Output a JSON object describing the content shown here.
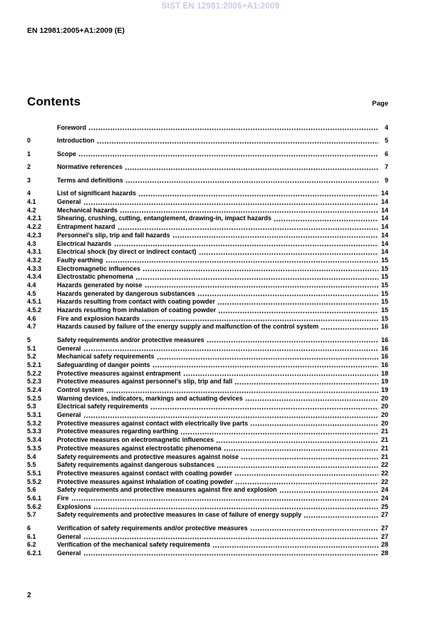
{
  "header": {
    "watermark": "SIST EN 12981:2005+A1:2009",
    "doc_ref": "EN 12981:2005+A1:2009 (E)"
  },
  "contents": {
    "title": "Contents",
    "page_label": "Page",
    "entries": [
      {
        "num": "",
        "title": "Foreword",
        "page": "4",
        "section_start": true
      },
      {
        "num": "0",
        "title": "Introduction",
        "page": "5",
        "section_start": true
      },
      {
        "num": "1",
        "title": "Scope",
        "page": "6",
        "section_start": true
      },
      {
        "num": "2",
        "title": "Normative references",
        "page": "7",
        "section_start": true
      },
      {
        "num": "3",
        "title": "Terms and definitions",
        "page": "9",
        "section_start": true
      },
      {
        "num": "4",
        "title": "List of significant hazards",
        "page": "14",
        "section_start": true
      },
      {
        "num": "4.1",
        "title": "General",
        "page": "14",
        "section_start": false
      },
      {
        "num": "4.2",
        "title": "Mechanical hazards",
        "page": "14",
        "section_start": false
      },
      {
        "num": "4.2.1",
        "title": "Shearing, crushing, cutting, entanglement, drawing-in, impact hazards",
        "page": "14",
        "section_start": false
      },
      {
        "num": "4.2.2",
        "title": "Entrapment hazard",
        "page": "14",
        "section_start": false
      },
      {
        "num": "4.2.3",
        "title": "Personnel's slip, trip and fall hazards",
        "page": "14",
        "section_start": false
      },
      {
        "num": "4.3",
        "title": "Electrical hazards",
        "page": "14",
        "section_start": false
      },
      {
        "num": "4.3.1",
        "title": "Electrical shock (by direct or indirect contact)",
        "page": "14",
        "section_start": false
      },
      {
        "num": "4.3.2",
        "title": "Faulty earthing",
        "page": "15",
        "section_start": false
      },
      {
        "num": "4.3.3",
        "title": "Electromagnetic influences",
        "page": "15",
        "section_start": false
      },
      {
        "num": "4.3.4",
        "title": "Electrostatic phenomena",
        "page": "15",
        "section_start": false
      },
      {
        "num": "4.4",
        "title": "Hazards generated by noise",
        "page": "15",
        "section_start": false
      },
      {
        "num": "4.5",
        "title": "Hazards generated by dangerous substances",
        "page": "15",
        "section_start": false
      },
      {
        "num": "4.5.1",
        "title": "Hazards resulting from contact with coating powder",
        "page": "15",
        "section_start": false
      },
      {
        "num": "4.5.2",
        "title": "Hazards resulting from inhalation of coating powder",
        "page": "15",
        "section_start": false
      },
      {
        "num": "4.6",
        "title": "Fire and explosion hazards",
        "page": "15",
        "section_start": false
      },
      {
        "num": "4.7",
        "title": "Hazards caused by failure of the energy supply and malfunction of the control system",
        "page": "16",
        "section_start": false
      },
      {
        "num": "5",
        "title": "Safety requirements and/or protective measures",
        "page": "16",
        "section_start": true
      },
      {
        "num": "5.1",
        "title": "General",
        "page": "16",
        "section_start": false
      },
      {
        "num": "5.2",
        "title": "Mechanical safety requirements",
        "page": "16",
        "section_start": false
      },
      {
        "num": "5.2.1",
        "title": "Safeguarding of danger points",
        "page": "16",
        "section_start": false
      },
      {
        "num": "5.2.2",
        "title": "Protective measures against entrapment",
        "page": "18",
        "section_start": false
      },
      {
        "num": "5.2.3",
        "title": "Protective measures against personnel's slip, trip and fall",
        "page": "19",
        "section_start": false
      },
      {
        "num": "5.2.4",
        "title": "Control system",
        "page": "19",
        "section_start": false
      },
      {
        "num": "5.2.5",
        "title": "Warning devices, indicators, markings and actuating devices",
        "page": "20",
        "section_start": false
      },
      {
        "num": "5.3",
        "title": "Electrical safety requirements",
        "page": "20",
        "section_start": false
      },
      {
        "num": "5.3.1",
        "title": "General",
        "page": "20",
        "section_start": false
      },
      {
        "num": "5.3.2",
        "title": "Protective measures against contact with electrically live parts",
        "page": "20",
        "section_start": false
      },
      {
        "num": "5.3.3",
        "title": "Protective measures regarding earthing",
        "page": "21",
        "section_start": false
      },
      {
        "num": "5.3.4",
        "title": "Protective measures on electromagnetic influences",
        "page": "21",
        "section_start": false
      },
      {
        "num": "5.3.5",
        "title": "Protective measures against electrostatic phenomena",
        "page": "21",
        "section_start": false
      },
      {
        "num": "5.4",
        "title": "Safety requirements and protective measures against noise",
        "page": "21",
        "section_start": false
      },
      {
        "num": "5.5",
        "title": "Safety requirements against dangerous substances",
        "page": "22",
        "section_start": false
      },
      {
        "num": "5.5.1",
        "title": "Protective measures against contact with coating powder",
        "page": "22",
        "section_start": false
      },
      {
        "num": "5.5.2",
        "title": "Protective measures against inhalation of coating powder",
        "page": "22",
        "section_start": false
      },
      {
        "num": "5.6",
        "title": "Safety requirements and protective measures against fire and explosion",
        "page": "24",
        "section_start": false
      },
      {
        "num": "5.6.1",
        "title": "Fire",
        "page": "24",
        "section_start": false
      },
      {
        "num": "5.6.2",
        "title": "Explosions",
        "page": "25",
        "section_start": false
      },
      {
        "num": "5.7",
        "title": "Safety requirements and protective measures in case of failure of energy supply",
        "page": "27",
        "section_start": false
      },
      {
        "num": "6",
        "title": "Verification of safety requirements and/or protective measures",
        "page": "27",
        "section_start": true
      },
      {
        "num": "6.1",
        "title": "General",
        "page": "27",
        "section_start": false
      },
      {
        "num": "6.2",
        "title": "Verification of the mechanical safety requirements",
        "page": "28",
        "section_start": false
      },
      {
        "num": "6.2.1",
        "title": "General",
        "page": "28",
        "section_start": false
      }
    ]
  },
  "footer": {
    "page_number": "2"
  },
  "colors": {
    "watermark": "#c7cae8",
    "text": "#000000",
    "background": "#ffffff"
  }
}
